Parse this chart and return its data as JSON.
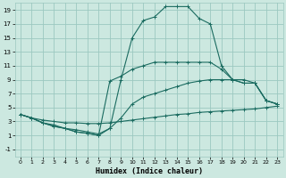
{
  "bg_color": "#cce8e0",
  "grid_color": "#9cc8c0",
  "line_color": "#1a6b60",
  "xlabel": "Humidex (Indice chaleur)",
  "xlim": [
    -0.5,
    23.5
  ],
  "ylim": [
    -2,
    20
  ],
  "yticks": [
    -1,
    1,
    3,
    5,
    7,
    9,
    11,
    13,
    15,
    17,
    19
  ],
  "xticks": [
    0,
    1,
    2,
    3,
    4,
    5,
    6,
    7,
    8,
    9,
    10,
    11,
    12,
    13,
    14,
    15,
    16,
    17,
    18,
    19,
    20,
    21,
    22,
    23
  ],
  "lines": [
    {
      "x": [
        0,
        1,
        2,
        3,
        4,
        5,
        6,
        7,
        8,
        9,
        10,
        11,
        12,
        13,
        14,
        15,
        16,
        17,
        18,
        19,
        20,
        21,
        22,
        23
      ],
      "y": [
        4,
        3.5,
        3.2,
        3.0,
        2.8,
        2.8,
        2.7,
        2.7,
        2.8,
        3.0,
        3.2,
        3.4,
        3.6,
        3.8,
        4.0,
        4.1,
        4.3,
        4.4,
        4.5,
        4.6,
        4.7,
        4.8,
        5.0,
        5.2
      ]
    },
    {
      "x": [
        0,
        1,
        2,
        3,
        4,
        5,
        6,
        7,
        8,
        9,
        10,
        11,
        12,
        13,
        14,
        15,
        16,
        17,
        18,
        19,
        20,
        21,
        22,
        23
      ],
      "y": [
        4,
        3.5,
        2.8,
        2.5,
        2.0,
        1.8,
        1.5,
        1.2,
        2.0,
        3.5,
        5.5,
        6.5,
        7.0,
        7.5,
        8.0,
        8.5,
        8.8,
        9.0,
        9.0,
        9.0,
        9.0,
        8.5,
        6.0,
        5.5
      ]
    },
    {
      "x": [
        0,
        1,
        2,
        3,
        4,
        5,
        6,
        7,
        8,
        9,
        10,
        11,
        12,
        13,
        14,
        15,
        16,
        17,
        18,
        19,
        20,
        21,
        22,
        23
      ],
      "y": [
        4,
        3.5,
        2.8,
        2.3,
        2.0,
        1.5,
        1.3,
        1.0,
        8.8,
        9.5,
        10.5,
        11.0,
        11.5,
        11.5,
        11.5,
        11.5,
        11.5,
        11.5,
        10.5,
        9.0,
        8.5,
        8.5,
        6.0,
        5.5
      ]
    },
    {
      "x": [
        0,
        1,
        2,
        3,
        4,
        5,
        6,
        7,
        8,
        9,
        10,
        11,
        12,
        13,
        14,
        15,
        16,
        17,
        18,
        19,
        20,
        21,
        22,
        23
      ],
      "y": [
        4,
        3.5,
        2.8,
        2.3,
        2.0,
        1.5,
        1.3,
        1.0,
        2.0,
        9.0,
        15.0,
        17.5,
        18.0,
        19.5,
        19.5,
        19.5,
        17.8,
        17.0,
        11.0,
        9.0,
        8.5,
        8.5,
        6.0,
        5.5
      ]
    }
  ]
}
